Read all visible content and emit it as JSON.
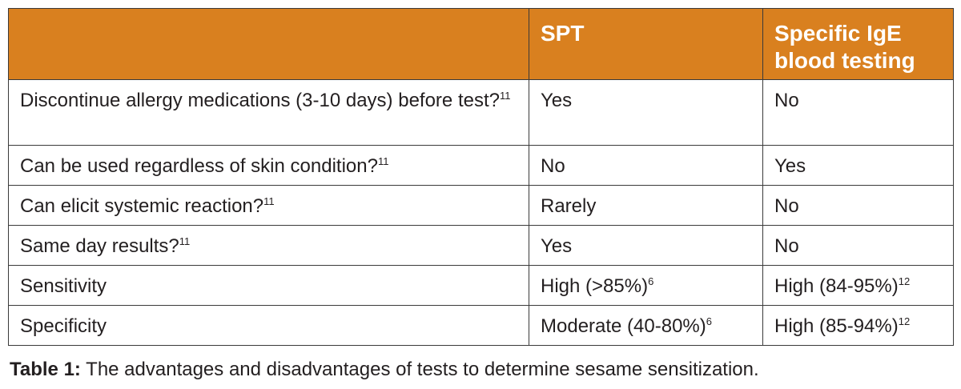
{
  "table": {
    "header": [
      "SPT",
      "Specific IgE blood testing"
    ],
    "rows": [
      [
        {
          "text": "Discontinue allergy medications (3-10 days) before test?",
          "sup": "11"
        },
        "Yes",
        "No"
      ],
      [
        {
          "text": "Can be used regardless of skin condition?",
          "sup": "11"
        },
        "No",
        "Yes"
      ],
      [
        {
          "text": "Can elicit systemic reaction?",
          "sup": "11"
        },
        "Rarely",
        "No"
      ],
      [
        {
          "text": "Same day results?",
          "sup": "11"
        },
        "Yes",
        "No"
      ],
      [
        "Sensitivity",
        {
          "text": "High (>85%)",
          "sup": "6"
        },
        {
          "text": "High (84-95%)",
          "sup": "12"
        }
      ],
      [
        "Specificity",
        {
          "text": "Moderate (40-80%)",
          "sup": "6"
        },
        {
          "text": "High (85-94%)",
          "sup": "12"
        }
      ]
    ]
  },
  "caption": {
    "label": "Table 1:",
    "text": "The advantages and disadvantages of tests to determine sesame sensitization."
  }
}
